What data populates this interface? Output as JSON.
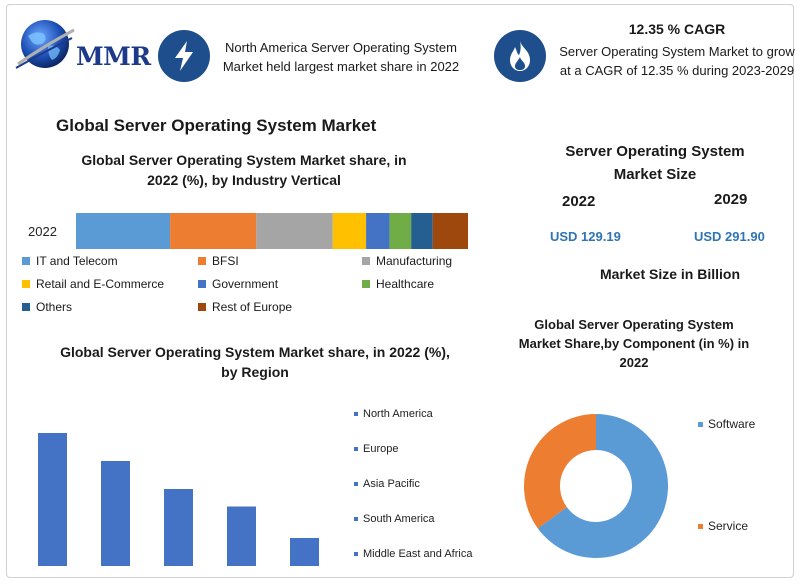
{
  "logo": {
    "text": "MMR"
  },
  "top_left": {
    "text": "North America Server Operating System Market held largest market share in 2022"
  },
  "top_right": {
    "title": "12.35 % CAGR",
    "text": "Server Operating System Market to grow at a CAGR of 12.35 % during 2023-2029"
  },
  "main_title": "Global Server Operating System Market",
  "market_size": {
    "title": "Server Operating System Market Size",
    "year_a": "2022",
    "year_b": "2029",
    "value_a": "USD 129.19",
    "value_b": "USD 291.90",
    "footnote": "Market Size in Billion"
  },
  "colors": {
    "blue": "#5b9bd5",
    "orange": "#ed7d31",
    "gray": "#a5a5a5",
    "yellow": "#ffc000",
    "royal": "#4472c4",
    "green": "#70ad47",
    "navy": "#255e91",
    "brown": "#9e480e",
    "badge": "#1f4e8c"
  },
  "icons": {
    "left_badge": "lightning-icon",
    "right_badge": "flame-icon",
    "logo": "globe-icon"
  },
  "chart_data": [
    {
      "type": "bar",
      "orientation": "horizontal-stacked",
      "title": "Global Server Operating System Market share, in 2022 (%), by Industry Vertical",
      "categories": [
        "2022"
      ],
      "series": [
        {
          "name": "IT and Telecom",
          "values": [
            24
          ],
          "color": "#5b9bd5"
        },
        {
          "name": "BFSI",
          "values": [
            22
          ],
          "color": "#ed7d31"
        },
        {
          "name": "Manufacturing",
          "values": [
            19.5
          ],
          "color": "#a5a5a5"
        },
        {
          "name": "Retail and E-Commerce",
          "values": [
            8.5
          ],
          "color": "#ffc000"
        },
        {
          "name": "Government",
          "values": [
            6
          ],
          "color": "#4472c4"
        },
        {
          "name": "Healthcare",
          "values": [
            5.5
          ],
          "color": "#70ad47"
        },
        {
          "name": "Others",
          "values": [
            5.5
          ],
          "color": "#255e91"
        },
        {
          "name": "Rest of Europe",
          "values": [
            9
          ],
          "color": "#9e480e"
        }
      ],
      "legend": "bottom"
    },
    {
      "type": "bar",
      "title": "Global Server Operating System Market share, in 2022 (%), by Region",
      "categories": [
        "North America",
        "Europe",
        "Asia Pacific",
        "South America",
        "Middle East and Africa"
      ],
      "values": [
        38,
        30,
        22,
        17,
        8
      ],
      "ylim": [
        0,
        40
      ],
      "color": "#4472c4",
      "legend": "right"
    },
    {
      "type": "pie",
      "donut": true,
      "title": "Global Server Operating System Market Share,by Component (in %) in 2022",
      "categories": [
        "Software",
        "Service"
      ],
      "values": [
        65,
        35
      ],
      "colors": [
        "#5b9bd5",
        "#ed7d31"
      ],
      "legend": "right"
    }
  ]
}
